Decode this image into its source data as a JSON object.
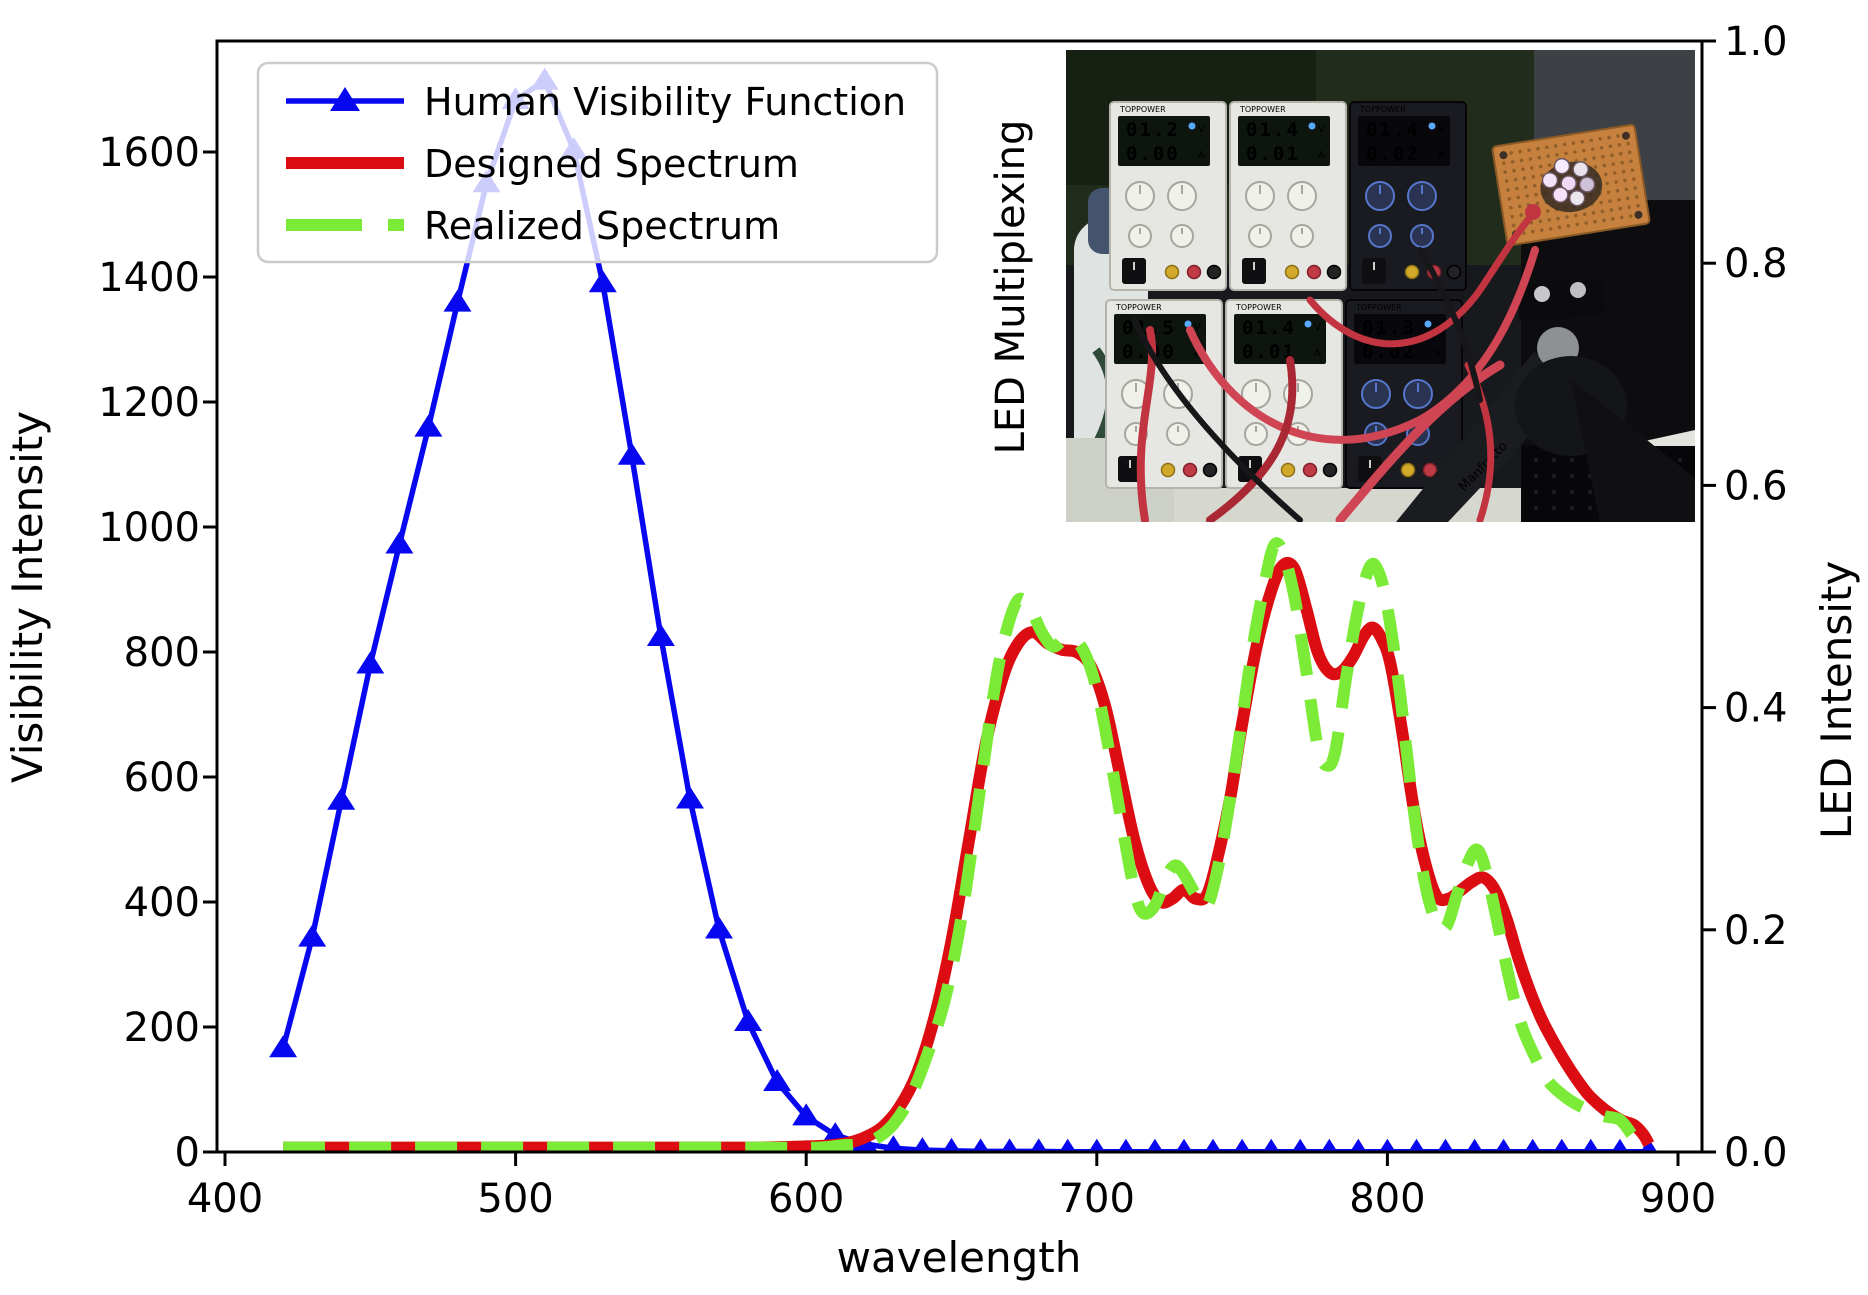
{
  "figure": {
    "background": "#ffffff"
  },
  "chart_data": {
    "type": "line",
    "title": "",
    "xlabel": "wavelength",
    "ylabel_left": "Visibility Intensity",
    "ylabel_right": "LED Intensity",
    "xlim": [
      397,
      908
    ],
    "ylim_left": [
      0,
      1778
    ],
    "ylim_right": [
      0.0,
      1.0
    ],
    "grid": false,
    "x_tick_values": [
      400,
      500,
      600,
      700,
      800,
      900
    ],
    "x_tick_labels": [
      "400",
      "500",
      "600",
      "700",
      "800",
      "900"
    ],
    "y_tick_values_left": [
      0,
      200,
      400,
      600,
      800,
      1000,
      1200,
      1400,
      1600
    ],
    "y_tick_labels_left": [
      "0",
      "200",
      "400",
      "600",
      "800",
      "1000",
      "1200",
      "1400",
      "1600"
    ],
    "y_tick_values_right": [
      0.0,
      0.2,
      0.4,
      0.6,
      0.8,
      1.0
    ],
    "y_tick_labels_right": [
      "0.0",
      "0.2",
      "0.4",
      "0.6",
      "0.8",
      "1.0"
    ],
    "legend": {
      "location": "upper left",
      "entries": [
        "Human Visibility Function",
        "Designed Spectrum",
        "Realized Spectrum"
      ]
    },
    "series": [
      {
        "name": "Human Visibility Function",
        "axis": "left",
        "color": "#0808f0",
        "line_style": "solid",
        "marker": "triangle-up",
        "points": [
          [
            420,
            166
          ],
          [
            430,
            343
          ],
          [
            440,
            562
          ],
          [
            450,
            780
          ],
          [
            460,
            972
          ],
          [
            470,
            1159
          ],
          [
            480,
            1359
          ],
          [
            490,
            1550
          ],
          [
            500,
            1683
          ],
          [
            510,
            1714
          ],
          [
            520,
            1603
          ],
          [
            530,
            1390
          ],
          [
            540,
            1114
          ],
          [
            550,
            824
          ],
          [
            560,
            564
          ],
          [
            570,
            356
          ],
          [
            580,
            208
          ],
          [
            590,
            112
          ],
          [
            600,
            57
          ],
          [
            610,
            27
          ],
          [
            620,
            13
          ],
          [
            630,
            6
          ],
          [
            640,
            3
          ],
          [
            650,
            2
          ],
          [
            660,
            1
          ],
          [
            670,
            1
          ],
          [
            680,
            1
          ],
          [
            690,
            0.5
          ],
          [
            700,
            0.4
          ],
          [
            710,
            0.3
          ],
          [
            720,
            0.3
          ],
          [
            730,
            0.3
          ],
          [
            740,
            0.3
          ],
          [
            750,
            0.3
          ],
          [
            760,
            0.3
          ],
          [
            770,
            0.3
          ],
          [
            780,
            0.3
          ],
          [
            790,
            0.3
          ],
          [
            800,
            0.3
          ],
          [
            810,
            0.3
          ],
          [
            820,
            0.3
          ],
          [
            830,
            0.3
          ],
          [
            840,
            0.3
          ],
          [
            850,
            0.3
          ],
          [
            860,
            0.3
          ],
          [
            870,
            0.3
          ],
          [
            880,
            0.3
          ],
          [
            890,
            0.3
          ]
        ]
      },
      {
        "name": "Designed Spectrum",
        "axis": "right",
        "color": "#dc0d12",
        "line_style": "solid",
        "marker": "none",
        "points": [
          [
            420,
            0.004
          ],
          [
            460,
            0.004
          ],
          [
            500,
            0.004
          ],
          [
            540,
            0.004
          ],
          [
            580,
            0.004
          ],
          [
            600,
            0.005
          ],
          [
            608,
            0.006
          ],
          [
            614,
            0.008
          ],
          [
            620,
            0.013
          ],
          [
            626,
            0.022
          ],
          [
            632,
            0.04
          ],
          [
            638,
            0.07
          ],
          [
            644,
            0.12
          ],
          [
            650,
            0.19
          ],
          [
            656,
            0.28
          ],
          [
            662,
            0.37
          ],
          [
            668,
            0.43
          ],
          [
            673,
            0.458
          ],
          [
            678,
            0.468
          ],
          [
            683,
            0.458
          ],
          [
            688,
            0.452
          ],
          [
            693,
            0.45
          ],
          [
            698,
            0.437
          ],
          [
            703,
            0.4
          ],
          [
            708,
            0.34
          ],
          [
            713,
            0.28
          ],
          [
            718,
            0.24
          ],
          [
            722,
            0.225
          ],
          [
            726,
            0.228
          ],
          [
            730,
            0.236
          ],
          [
            734,
            0.228
          ],
          [
            738,
            0.232
          ],
          [
            742,
            0.27
          ],
          [
            746,
            0.32
          ],
          [
            750,
            0.385
          ],
          [
            755,
            0.455
          ],
          [
            760,
            0.505
          ],
          [
            764,
            0.528
          ],
          [
            768,
            0.525
          ],
          [
            772,
            0.49
          ],
          [
            776,
            0.45
          ],
          [
            780,
            0.432
          ],
          [
            784,
            0.432
          ],
          [
            788,
            0.445
          ],
          [
            792,
            0.465
          ],
          [
            795,
            0.472
          ],
          [
            798,
            0.462
          ],
          [
            801,
            0.44
          ],
          [
            805,
            0.38
          ],
          [
            809,
            0.31
          ],
          [
            813,
            0.26
          ],
          [
            817,
            0.23
          ],
          [
            821,
            0.228
          ],
          [
            825,
            0.235
          ],
          [
            829,
            0.243
          ],
          [
            833,
            0.247
          ],
          [
            837,
            0.236
          ],
          [
            841,
            0.21
          ],
          [
            845,
            0.175
          ],
          [
            849,
            0.145
          ],
          [
            853,
            0.12
          ],
          [
            857,
            0.1
          ],
          [
            861,
            0.082
          ],
          [
            865,
            0.066
          ],
          [
            869,
            0.052
          ],
          [
            873,
            0.042
          ],
          [
            877,
            0.034
          ],
          [
            881,
            0.028
          ],
          [
            885,
            0.024
          ],
          [
            888,
            0.016
          ],
          [
            890,
            0.007
          ]
        ]
      },
      {
        "name": "Realized Spectrum",
        "axis": "right",
        "color": "#7ceb38",
        "line_style": "dashed",
        "marker": "none",
        "points": [
          [
            420,
            0.004
          ],
          [
            460,
            0.004
          ],
          [
            500,
            0.004
          ],
          [
            540,
            0.004
          ],
          [
            580,
            0.004
          ],
          [
            604,
            0.004
          ],
          [
            612,
            0.006
          ],
          [
            618,
            0.007
          ],
          [
            624,
            0.012
          ],
          [
            630,
            0.025
          ],
          [
            636,
            0.05
          ],
          [
            642,
            0.09
          ],
          [
            648,
            0.14
          ],
          [
            654,
            0.22
          ],
          [
            660,
            0.33
          ],
          [
            665,
            0.42
          ],
          [
            669,
            0.47
          ],
          [
            673,
            0.497
          ],
          [
            677,
            0.49
          ],
          [
            681,
            0.468
          ],
          [
            685,
            0.455
          ],
          [
            689,
            0.462
          ],
          [
            693,
            0.46
          ],
          [
            697,
            0.442
          ],
          [
            701,
            0.405
          ],
          [
            705,
            0.35
          ],
          [
            709,
            0.29
          ],
          [
            713,
            0.235
          ],
          [
            716,
            0.215
          ],
          [
            720,
            0.222
          ],
          [
            724,
            0.248
          ],
          [
            727,
            0.258
          ],
          [
            730,
            0.25
          ],
          [
            734,
            0.232
          ],
          [
            738,
            0.222
          ],
          [
            742,
            0.26
          ],
          [
            746,
            0.32
          ],
          [
            750,
            0.39
          ],
          [
            754,
            0.46
          ],
          [
            758,
            0.515
          ],
          [
            761,
            0.546
          ],
          [
            764,
            0.54
          ],
          [
            768,
            0.5
          ],
          [
            772,
            0.435
          ],
          [
            776,
            0.365
          ],
          [
            779,
            0.348
          ],
          [
            782,
            0.36
          ],
          [
            786,
            0.43
          ],
          [
            790,
            0.49
          ],
          [
            794,
            0.527
          ],
          [
            797,
            0.522
          ],
          [
            800,
            0.49
          ],
          [
            804,
            0.42
          ],
          [
            808,
            0.33
          ],
          [
            812,
            0.255
          ],
          [
            816,
            0.212
          ],
          [
            820,
            0.202
          ],
          [
            824,
            0.232
          ],
          [
            828,
            0.262
          ],
          [
            831,
            0.272
          ],
          [
            834,
            0.252
          ],
          [
            838,
            0.205
          ],
          [
            842,
            0.155
          ],
          [
            846,
            0.115
          ],
          [
            850,
            0.09
          ],
          [
            855,
            0.065
          ],
          [
            860,
            0.052
          ],
          [
            865,
            0.043
          ],
          [
            870,
            0.037
          ],
          [
            875,
            0.032
          ],
          [
            880,
            0.029
          ],
          [
            884,
            0.016
          ]
        ]
      }
    ]
  },
  "inset": {
    "label": "LED Multiplexing",
    "brand": "TOPPOWER",
    "tripod_brand": "Manfrotto",
    "volt_unit": "V",
    "amp_unit": "A",
    "power_supplies": [
      {
        "style": "white",
        "volts": "01.2",
        "amps": "0.00"
      },
      {
        "style": "white",
        "volts": "01.4",
        "amps": "0.01"
      },
      {
        "style": "black",
        "volts": "01.4",
        "amps": "0.02"
      },
      {
        "style": "white",
        "volts": "01.5",
        "amps": "0.00"
      },
      {
        "style": "white",
        "volts": "01.4",
        "amps": "0.01"
      },
      {
        "style": "black",
        "volts": "01.3",
        "amps": "0.02"
      }
    ]
  }
}
